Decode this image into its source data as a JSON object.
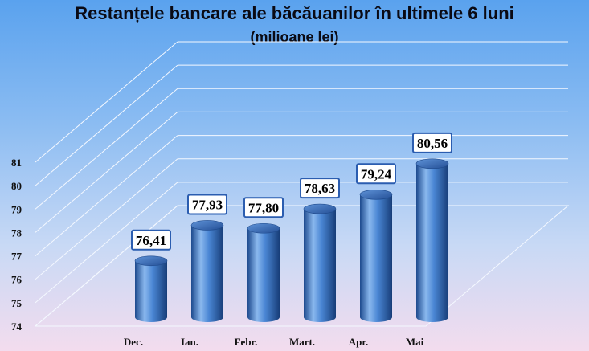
{
  "title": "Restanțele bancare ale băcăuanilor în ultimele 6 luni",
  "subtitle": "(milioane lei)",
  "colors": {
    "bar_light": "#8ab8ee",
    "bar_mid": "#3f78c8",
    "bar_dark": "#1b4585",
    "label_border": "#2b5db0",
    "grid": "#f4f8ff"
  },
  "chart_data": {
    "type": "bar",
    "categories": [
      "Dec.",
      "Ian.",
      "Febr.",
      "Mart.",
      "Apr.",
      "Mai"
    ],
    "values": [
      76.41,
      77.93,
      77.8,
      78.63,
      79.24,
      80.56
    ],
    "data_labels": [
      "76,41",
      "77,93",
      "77,80",
      "78,63",
      "79,24",
      "80,56"
    ],
    "y_ticks": [
      "74",
      "75",
      "76",
      "77",
      "78",
      "79",
      "80",
      "81"
    ],
    "ylim": [
      74,
      81
    ],
    "xlabel": "",
    "ylabel": "",
    "grid": true,
    "style": "3d-cylinder"
  }
}
